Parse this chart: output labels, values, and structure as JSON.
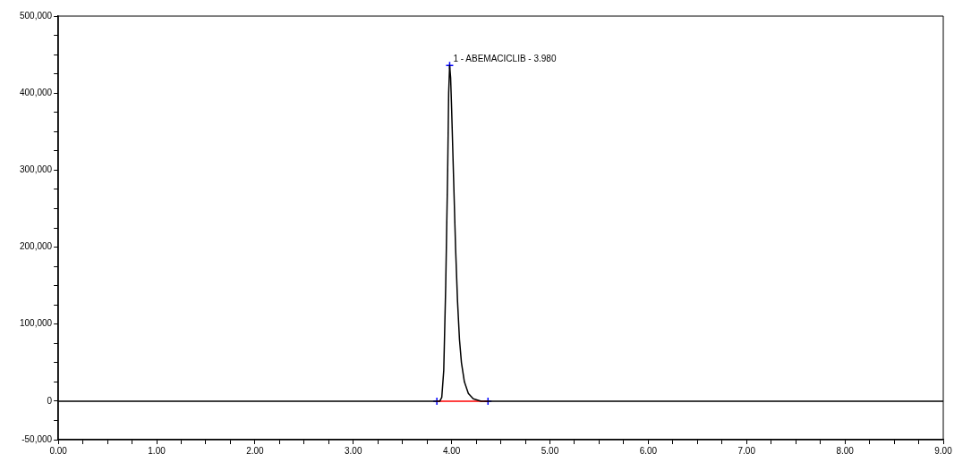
{
  "chart_data": {
    "type": "line",
    "series": [
      {
        "color": "#000000",
        "x": [
          0,
          1,
          2,
          3,
          3.8,
          3.88,
          3.9,
          3.92,
          3.94,
          3.96,
          3.97,
          3.98,
          3.99,
          4.0,
          4.02,
          4.04,
          4.06,
          4.08,
          4.1,
          4.13,
          4.17,
          4.22,
          4.3,
          4.37,
          5,
          6,
          7,
          8,
          9
        ],
        "values": [
          0,
          0,
          0,
          0,
          0,
          0,
          5000,
          40000,
          150000,
          300000,
          400000,
          436000,
          420000,
          380000,
          290000,
          200000,
          130000,
          80000,
          50000,
          25000,
          10000,
          3000,
          0,
          0,
          0,
          0,
          0,
          0,
          0
        ]
      },
      {
        "type": "line",
        "color": "#ff0000",
        "x": [
          3.85,
          4.37
        ],
        "values": [
          0,
          0
        ]
      },
      {
        "type": "scatter",
        "color": "#0000ff",
        "marker": "cross",
        "x": [
          3.85,
          3.98,
          4.37
        ],
        "values": [
          0,
          436000,
          0
        ]
      }
    ],
    "xlim": [
      0,
      9
    ],
    "xticks": [
      {
        "value": 0,
        "label": "0.00"
      },
      {
        "value": 0.25,
        "label": null
      },
      {
        "value": 0.5,
        "label": null
      },
      {
        "value": 0.75,
        "label": null
      },
      {
        "value": 1,
        "label": "1.00"
      },
      {
        "value": 1.25,
        "label": null
      },
      {
        "value": 1.5,
        "label": null
      },
      {
        "value": 1.75,
        "label": null
      },
      {
        "value": 2,
        "label": "2.00"
      },
      {
        "value": 2.25,
        "label": null
      },
      {
        "value": 2.5,
        "label": null
      },
      {
        "value": 2.75,
        "label": null
      },
      {
        "value": 3,
        "label": "3.00"
      },
      {
        "value": 3.25,
        "label": null
      },
      {
        "value": 3.5,
        "label": null
      },
      {
        "value": 3.75,
        "label": null
      },
      {
        "value": 4,
        "label": "4.00"
      },
      {
        "value": 4.25,
        "label": null
      },
      {
        "value": 4.5,
        "label": null
      },
      {
        "value": 4.75,
        "label": null
      },
      {
        "value": 5,
        "label": "5.00"
      },
      {
        "value": 5.25,
        "label": null
      },
      {
        "value": 5.5,
        "label": null
      },
      {
        "value": 5.75,
        "label": null
      },
      {
        "value": 6,
        "label": "6.00"
      },
      {
        "value": 6.25,
        "label": null
      },
      {
        "value": 6.5,
        "label": null
      },
      {
        "value": 6.75,
        "label": null
      },
      {
        "value": 7,
        "label": "7.00"
      },
      {
        "value": 7.25,
        "label": null
      },
      {
        "value": 7.5,
        "label": null
      },
      {
        "value": 7.75,
        "label": null
      },
      {
        "value": 8,
        "label": "8.00"
      },
      {
        "value": 8.25,
        "label": null
      },
      {
        "value": 8.5,
        "label": null
      },
      {
        "value": 8.75,
        "label": null
      },
      {
        "value": 9,
        "label": "9.00"
      }
    ],
    "ylim": [
      -50000,
      500000
    ],
    "yticks": [
      {
        "value": -50000,
        "label": "-50,000"
      },
      {
        "value": -25000,
        "label": null
      },
      {
        "value": 0,
        "label": "0"
      },
      {
        "value": 25000,
        "label": null
      },
      {
        "value": 50000,
        "label": null
      },
      {
        "value": 75000,
        "label": null
      },
      {
        "value": 100000,
        "label": "100,000"
      },
      {
        "value": 125000,
        "label": null
      },
      {
        "value": 150000,
        "label": null
      },
      {
        "value": 175000,
        "label": null
      },
      {
        "value": 200000,
        "label": "200,000"
      },
      {
        "value": 225000,
        "label": null
      },
      {
        "value": 250000,
        "label": null
      },
      {
        "value": 275000,
        "label": null
      },
      {
        "value": 300000,
        "label": "300,000"
      },
      {
        "value": 325000,
        "label": null
      },
      {
        "value": 350000,
        "label": null
      },
      {
        "value": 375000,
        "label": null
      },
      {
        "value": 400000,
        "label": "400,000"
      },
      {
        "value": 425000,
        "label": null
      },
      {
        "value": 450000,
        "label": null
      },
      {
        "value": 475000,
        "label": null
      },
      {
        "value": 500000,
        "label": "500,000"
      }
    ],
    "annotations": [
      {
        "text": "1 - ABEMACICLIB - 3.980",
        "x": 3.98,
        "y": 436000
      }
    ],
    "grid": false,
    "legend": false
  }
}
